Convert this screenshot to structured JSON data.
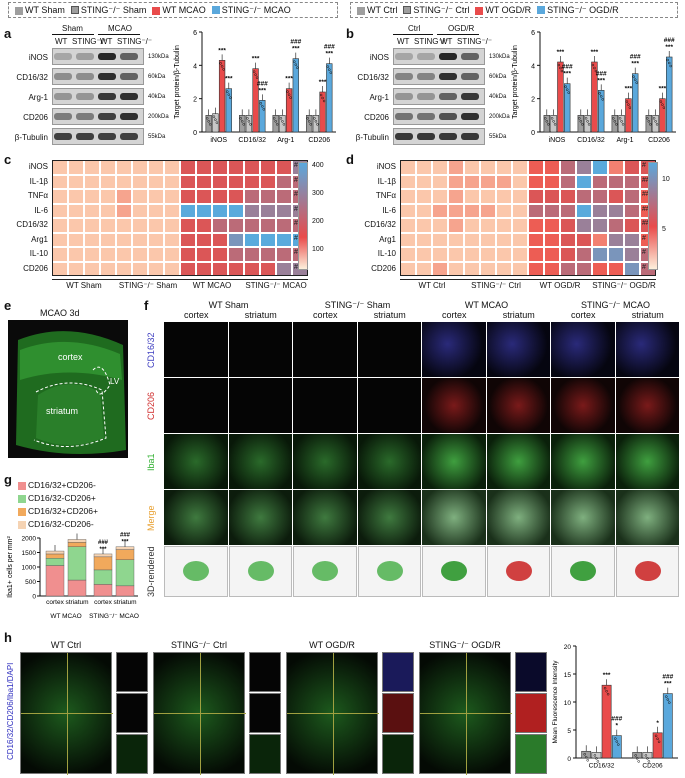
{
  "legend_a": [
    {
      "label": "WT Sham",
      "color": "#9e9e9e"
    },
    {
      "label": "STING⁻/⁻ Sham",
      "color": "#9e9e9e"
    },
    {
      "label": "WT MCAO",
      "color": "#e94b4b"
    },
    {
      "label": "STING⁻/⁻ MCAO",
      "color": "#5aa8dc"
    }
  ],
  "legend_b": [
    {
      "label": "WT Ctrl",
      "color": "#9e9e9e"
    },
    {
      "label": "STING⁻/⁻ Ctrl",
      "color": "#9e9e9e"
    },
    {
      "label": "WT OGD/R",
      "color": "#e94b4b"
    },
    {
      "label": "STING⁻/⁻ OGD/R",
      "color": "#5aa8dc"
    }
  ],
  "panel_letters": {
    "a": "a",
    "b": "b",
    "c": "c",
    "d": "d",
    "e": "e",
    "f": "f",
    "g": "g",
    "h": "h"
  },
  "blot_a": {
    "groups": [
      "Sham",
      "MCAO"
    ],
    "lanes": [
      "WT",
      "STING⁻/⁻",
      "WT",
      "STING⁻/⁻"
    ],
    "proteins": [
      "iNOS",
      "CD16/32",
      "Arg-1",
      "CD206",
      "β-Tubulin"
    ],
    "kda": [
      "130kDa",
      "60kDa",
      "40kDa",
      "200kDa",
      "55kDa"
    ]
  },
  "blot_b": {
    "groups": [
      "Ctrl",
      "OGD/R"
    ],
    "lanes": [
      "WT",
      "STING⁻/⁻",
      "WT",
      "STING⁻/⁻"
    ],
    "proteins": [
      "iNOS",
      "CD16/32",
      "Arg-1",
      "CD206",
      "β-Tubulin"
    ],
    "kda": [
      "130kDa",
      "60kDa",
      "40kDa",
      "200kDa",
      "55kDa"
    ]
  },
  "chart_data": [
    {
      "type": "bar",
      "panel": "a",
      "ylabel": "Target protein/β-Tubulin",
      "categories": [
        "iNOS",
        "CD16/32",
        "Arg-1",
        "CD206"
      ],
      "ylim": [
        0,
        6
      ],
      "yticks": [
        0,
        2,
        4,
        6
      ],
      "series": [
        {
          "name": "WT Sham",
          "values": [
            1.0,
            1.0,
            1.0,
            1.0
          ]
        },
        {
          "name": "STING⁻/⁻ Sham",
          "values": [
            1.1,
            1.0,
            1.0,
            1.0
          ]
        },
        {
          "name": "WT MCAO",
          "values": [
            4.3,
            3.8,
            2.6,
            2.4
          ]
        },
        {
          "name": "STING⁻/⁻ MCAO",
          "values": [
            2.6,
            1.9,
            4.4,
            4.1
          ]
        }
      ],
      "annotations": [
        [
          "***",
          "***"
        ],
        [
          "***",
          "###\n***"
        ],
        [
          "***",
          "###\n***"
        ],
        [
          "***",
          "###\n***"
        ]
      ]
    },
    {
      "type": "bar",
      "panel": "b",
      "ylabel": "Target protein/β-Tubulin",
      "categories": [
        "iNOS",
        "CD16/32",
        "Arg-1",
        "CD206"
      ],
      "ylim": [
        0,
        6
      ],
      "yticks": [
        0,
        2,
        4,
        6
      ],
      "series": [
        {
          "name": "WT Ctrl",
          "values": [
            1.0,
            1.0,
            1.0,
            1.0
          ]
        },
        {
          "name": "STING⁻/⁻ Ctrl",
          "values": [
            1.0,
            1.0,
            1.0,
            1.0
          ]
        },
        {
          "name": "WT OGD/R",
          "values": [
            4.2,
            4.2,
            2.0,
            2.0
          ]
        },
        {
          "name": "STING⁻/⁻ OGD/R",
          "values": [
            2.9,
            2.5,
            3.5,
            4.5
          ]
        }
      ],
      "annotations": [
        [
          "***",
          "###\n***"
        ],
        [
          "***",
          "###\n***"
        ],
        [
          "***",
          "###\n***"
        ],
        [
          "***",
          "###\n***"
        ]
      ]
    },
    {
      "type": "heatmap",
      "panel": "c",
      "rows": [
        "iNOS",
        "IL-1β",
        "TNFα",
        "IL-6",
        "CD16/32",
        "Arg1",
        "IL-10",
        "CD206"
      ],
      "groups": [
        "WT Sham",
        "STING⁻/⁻ Sham",
        "WT MCAO",
        "STING⁻/⁻ MCAO"
      ],
      "colorbar_ticks": [
        100,
        200,
        300,
        400
      ],
      "row_marks": [
        "###",
        "###",
        "###",
        "###",
        "#",
        "###",
        "###",
        "###"
      ]
    },
    {
      "type": "heatmap",
      "panel": "d",
      "rows": [
        "iNOS",
        "IL-1β",
        "TNFα",
        "IL-6",
        "CD16/32",
        "Arg1",
        "IL-10",
        "CD206"
      ],
      "groups": [
        "WT Ctrl",
        "STING⁻/⁻ Ctrl",
        "WT OGD/R",
        "STING⁻/⁻ OGD/R"
      ],
      "colorbar_ticks": [
        5,
        10
      ],
      "row_marks": [
        "#",
        "##",
        "###",
        "###",
        "###",
        "#",
        "#",
        "#"
      ]
    },
    {
      "type": "bar",
      "panel": "g",
      "ylabel": "Iba1+ cells per mm²",
      "categories": [
        "cortex",
        "striatum",
        "cortex",
        "striatum"
      ],
      "groups": [
        "WT MCAO",
        "STING⁻/⁻ MCAO"
      ],
      "ylim": [
        0,
        2000
      ],
      "yticks": [
        0,
        500,
        1000,
        1500,
        2000
      ],
      "series": [
        {
          "name": "CD16/32+CD206-",
          "color": "#f08f8f",
          "values": [
            1050,
            550,
            400,
            350
          ]
        },
        {
          "name": "CD16/32-CD206+",
          "color": "#8fd68f",
          "values": [
            250,
            1150,
            500,
            900
          ]
        },
        {
          "name": "CD16/32+CD206+",
          "color": "#f1a95c",
          "values": [
            150,
            150,
            450,
            350
          ]
        },
        {
          "name": "CD16/32-CD206-",
          "color": "#f5d3b3",
          "values": [
            100,
            100,
            100,
            100
          ]
        }
      ],
      "annotations": [
        "",
        "",
        "###\n***",
        "###\n***"
      ]
    },
    {
      "type": "bar",
      "panel": "h",
      "ylabel": "Mean Fluorescence Intensity",
      "categories": [
        "CD16/32",
        "CD206"
      ],
      "ylim": [
        0,
        20
      ],
      "yticks": [
        0,
        5,
        10,
        15,
        20
      ],
      "series": [
        {
          "name": "WT Ctrl",
          "values": [
            1.2,
            1.0
          ]
        },
        {
          "name": "STING⁻/⁻ Ctrl",
          "values": [
            1.0,
            1.0
          ]
        },
        {
          "name": "WT OGD/R",
          "values": [
            13.0,
            4.5
          ]
        },
        {
          "name": "STING⁻/⁻ OGD/R",
          "values": [
            4.0,
            11.5
          ]
        }
      ],
      "annotations": [
        [
          "***",
          "###\n*"
        ],
        [
          "*",
          "###\n***"
        ]
      ]
    }
  ],
  "panel_e": {
    "title": "MCAO 3d",
    "labels": [
      "cortex",
      "striatum",
      "LV"
    ]
  },
  "panel_f": {
    "groups": [
      "WT Sham",
      "STING⁻/⁻ Sham",
      "WT MCAO",
      "STING⁻/⁻ MCAO"
    ],
    "cols": [
      "cortex",
      "striatum",
      "cortex",
      "striatum",
      "cortex",
      "striatum",
      "cortex",
      "striatum"
    ],
    "rows": [
      "CD16/32",
      "CD206",
      "Iba1",
      "Merge",
      "3D-rendered"
    ]
  },
  "panel_g_axis": {
    "xgroups": [
      "WT MCAO",
      "STING⁻/⁻ MCAO"
    ]
  },
  "panel_h": {
    "titles": [
      "WT Ctrl",
      "STING⁻/⁻ Ctrl",
      "WT OGD/R",
      "STING⁻/⁻ OGD/R"
    ],
    "side_label": "CD16/32/CD206/Iba1/DAPI"
  },
  "colors": {
    "wt": "#9e9e9e",
    "red": "#e94b4b",
    "blue": "#5aa8dc"
  }
}
